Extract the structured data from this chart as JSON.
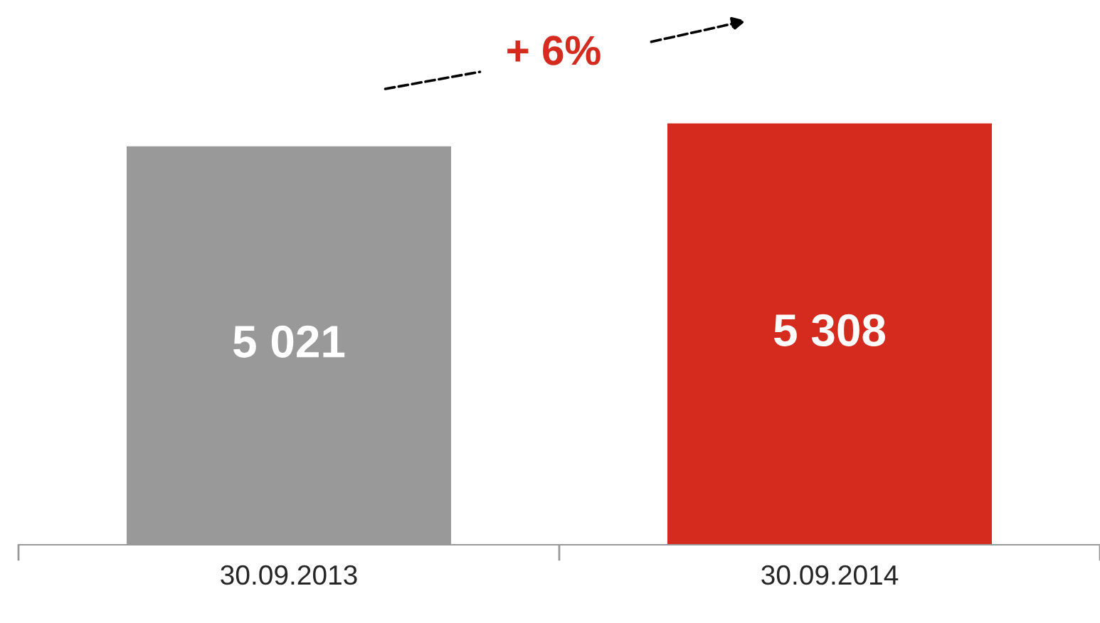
{
  "chart_data": {
    "type": "bar",
    "categories": [
      "30.09.2013",
      "30.09.2014"
    ],
    "values": [
      5021,
      5308
    ],
    "colors": [
      "#999999",
      "#d52b1e"
    ],
    "value_labels": [
      "5 021",
      "5 308"
    ],
    "legend": false,
    "annotations": [
      "+ 6%"
    ]
  }
}
